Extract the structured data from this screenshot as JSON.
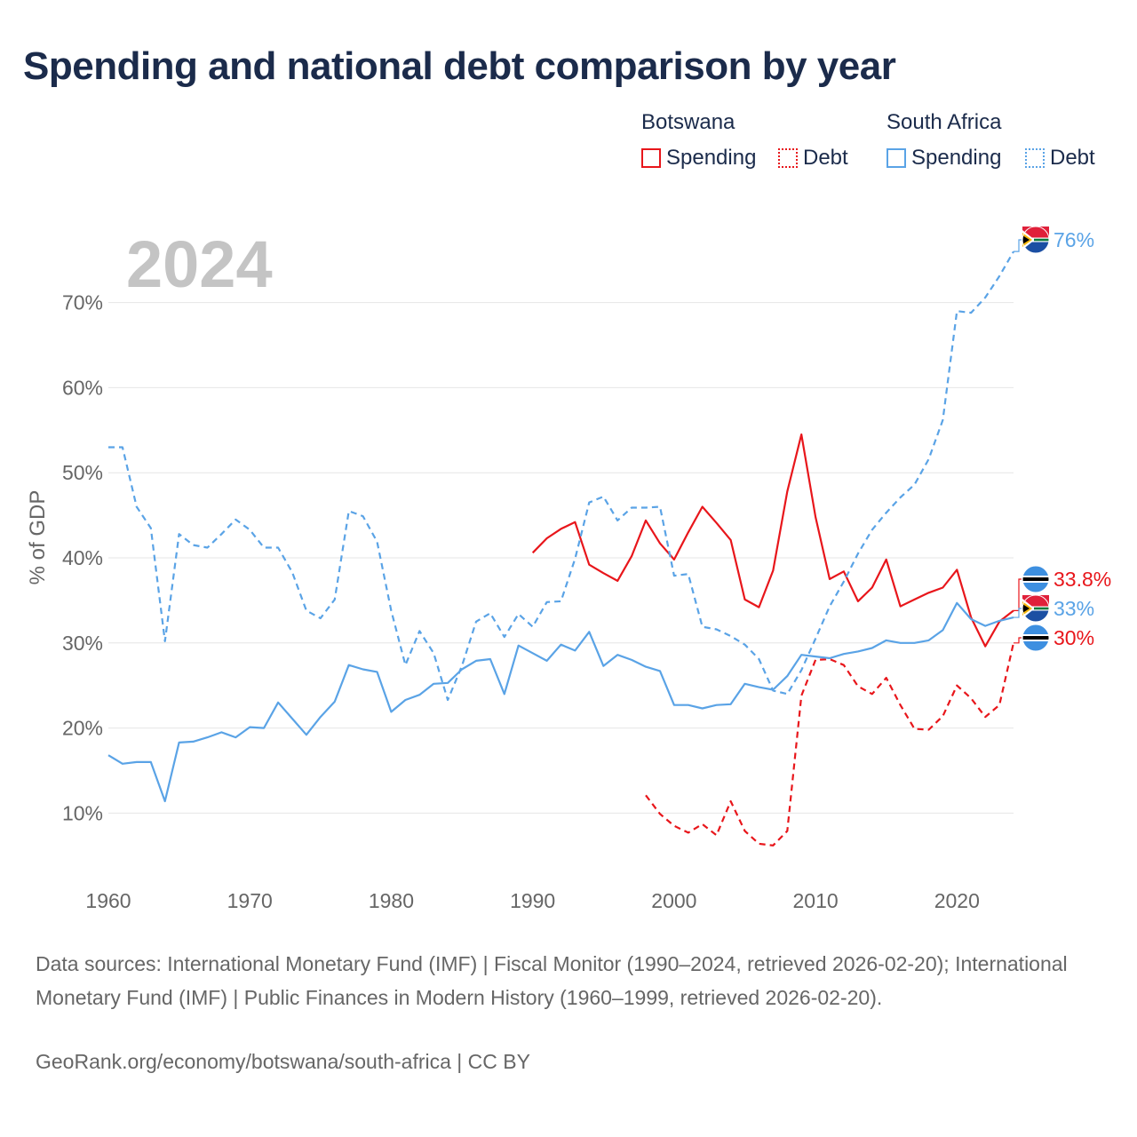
{
  "title": "Spending and national debt comparison by year",
  "legend": {
    "groups": [
      {
        "country": "Botswana",
        "items": [
          {
            "label": "Spending",
            "style": "solid",
            "color": "#e8161b"
          },
          {
            "label": "Debt",
            "style": "dotted",
            "color": "#e8161b"
          }
        ]
      },
      {
        "country": "South Africa",
        "items": [
          {
            "label": "Spending",
            "style": "solid",
            "color": "#5aa3e6"
          },
          {
            "label": "Debt",
            "style": "dotted",
            "color": "#5aa3e6"
          }
        ]
      }
    ]
  },
  "sources": "Data sources: International Monetary Fund (IMF) | Fiscal Monitor (1990–2024, retrieved 2026-02-20); International Monetary Fund (IMF) | Public Finances in Modern History (1960–1999, retrieved 2026-02-20).",
  "credit": "GeoRank.org/economy/botswana/south-africa | CC BY",
  "chart_data": {
    "type": "line",
    "title": "Spending and national debt comparison by year",
    "year_label": "2024",
    "xlabel": "",
    "ylabel": "% of GDP",
    "xlim": [
      1960,
      2024
    ],
    "ylim": [
      2,
      78
    ],
    "xticks": [
      1960,
      1970,
      1980,
      1990,
      2000,
      2010,
      2020
    ],
    "yticks": [
      10,
      20,
      30,
      40,
      50,
      60,
      70
    ],
    "ytick_labels": [
      "10%",
      "20%",
      "30%",
      "40%",
      "50%",
      "60%",
      "70%"
    ],
    "grid": true,
    "series": [
      {
        "name": "Botswana Spending",
        "color": "#e8161b",
        "dash": "solid",
        "x": [
          1990,
          1991,
          1992,
          1993,
          1994,
          1995,
          1996,
          1997,
          1998,
          1999,
          2000,
          2001,
          2002,
          2003,
          2004,
          2005,
          2006,
          2007,
          2008,
          2009,
          2010,
          2011,
          2012,
          2013,
          2014,
          2015,
          2016,
          2017,
          2018,
          2019,
          2020,
          2021,
          2022,
          2023,
          2024
        ],
        "y": [
          40.6,
          42.3,
          43.4,
          44.2,
          39.2,
          38.2,
          37.3,
          40.2,
          44.4,
          41.7,
          39.8,
          43.0,
          46.0,
          44.1,
          42.1,
          35.1,
          34.2,
          38.5,
          47.8,
          54.5,
          44.8,
          37.5,
          38.4,
          34.9,
          36.5,
          39.8,
          34.3,
          35.1,
          35.9,
          36.5,
          38.6,
          33.0,
          29.6,
          32.5,
          33.8
        ],
        "end_label": "33.8%",
        "flag": "botswana"
      },
      {
        "name": "Botswana Debt",
        "color": "#e8161b",
        "dash": "dashed",
        "x": [
          1998,
          1999,
          2000,
          2001,
          2002,
          2003,
          2004,
          2005,
          2006,
          2007,
          2008,
          2009,
          2010,
          2011,
          2012,
          2013,
          2014,
          2015,
          2016,
          2017,
          2018,
          2019,
          2020,
          2021,
          2022,
          2023,
          2024
        ],
        "y": [
          12.1,
          9.9,
          8.5,
          7.7,
          8.7,
          7.4,
          11.4,
          7.9,
          6.4,
          6.2,
          7.9,
          23.8,
          28.0,
          28.1,
          27.4,
          24.9,
          24.0,
          25.9,
          22.7,
          19.9,
          19.8,
          21.4,
          25.0,
          23.5,
          21.3,
          22.7,
          30.0
        ],
        "end_label": "30%",
        "flag": "botswana"
      },
      {
        "name": "South Africa Spending",
        "color": "#5aa3e6",
        "dash": "solid",
        "x": [
          1960,
          1961,
          1962,
          1963,
          1964,
          1965,
          1966,
          1967,
          1968,
          1969,
          1970,
          1971,
          1972,
          1973,
          1974,
          1975,
          1976,
          1977,
          1978,
          1979,
          1980,
          1981,
          1982,
          1983,
          1984,
          1985,
          1986,
          1987,
          1988,
          1989,
          1990,
          1991,
          1992,
          1993,
          1994,
          1995,
          1996,
          1997,
          1998,
          1999,
          2000,
          2001,
          2002,
          2003,
          2004,
          2005,
          2006,
          2007,
          2008,
          2009,
          2010,
          2011,
          2012,
          2013,
          2014,
          2015,
          2016,
          2017,
          2018,
          2019,
          2020,
          2021,
          2022,
          2023,
          2024
        ],
        "y": [
          16.8,
          15.8,
          16.0,
          16.0,
          11.4,
          18.3,
          18.4,
          18.9,
          19.5,
          18.9,
          20.1,
          20.0,
          23.0,
          21.1,
          19.2,
          21.3,
          23.1,
          27.4,
          26.9,
          26.6,
          21.9,
          23.3,
          23.9,
          25.2,
          25.3,
          26.9,
          27.9,
          28.1,
          24.0,
          29.7,
          28.8,
          27.9,
          29.8,
          29.1,
          31.3,
          27.3,
          28.6,
          28.0,
          27.2,
          26.7,
          22.7,
          22.7,
          22.3,
          22.7,
          22.8,
          25.2,
          24.8,
          24.5,
          26.1,
          28.6,
          28.4,
          28.2,
          28.7,
          29.0,
          29.4,
          30.3,
          30.0,
          30.0,
          30.3,
          31.5,
          34.7,
          32.8,
          32.0,
          32.6,
          33.0
        ],
        "end_label": "33%",
        "flag": "south-africa"
      },
      {
        "name": "South Africa Debt",
        "color": "#5aa3e6",
        "dash": "dashed",
        "x": [
          1960,
          1961,
          1962,
          1963,
          1964,
          1965,
          1966,
          1967,
          1968,
          1969,
          1970,
          1971,
          1972,
          1973,
          1974,
          1975,
          1976,
          1977,
          1978,
          1979,
          1980,
          1981,
          1982,
          1983,
          1984,
          1985,
          1986,
          1987,
          1988,
          1989,
          1990,
          1991,
          1992,
          1993,
          1994,
          1995,
          1996,
          1997,
          1998,
          1999,
          2000,
          2001,
          2002,
          2003,
          2004,
          2005,
          2006,
          2007,
          2008,
          2009,
          2010,
          2011,
          2012,
          2013,
          2014,
          2015,
          2016,
          2017,
          2018,
          2019,
          2020,
          2021,
          2022,
          2023,
          2024
        ],
        "y": [
          53.0,
          53.0,
          46.0,
          43.5,
          30.2,
          42.8,
          41.5,
          41.2,
          42.8,
          44.5,
          43.3,
          41.2,
          41.2,
          38.3,
          33.8,
          32.9,
          35.1,
          45.5,
          44.9,
          41.9,
          33.8,
          27.4,
          31.4,
          28.8,
          23.3,
          27.3,
          32.5,
          33.5,
          30.7,
          33.4,
          31.9,
          34.8,
          34.9,
          39.9,
          46.5,
          47.2,
          44.4,
          45.9,
          45.9,
          46.0,
          37.9,
          38.1,
          31.9,
          31.6,
          30.8,
          29.8,
          28.1,
          24.4,
          24.0,
          26.8,
          30.5,
          34.3,
          37.2,
          40.5,
          43.3,
          45.3,
          47.1,
          48.6,
          51.6,
          56.2,
          69.0,
          68.8,
          70.6,
          73.1,
          76.0
        ],
        "end_label": "76%",
        "flag": "south-africa"
      }
    ]
  }
}
